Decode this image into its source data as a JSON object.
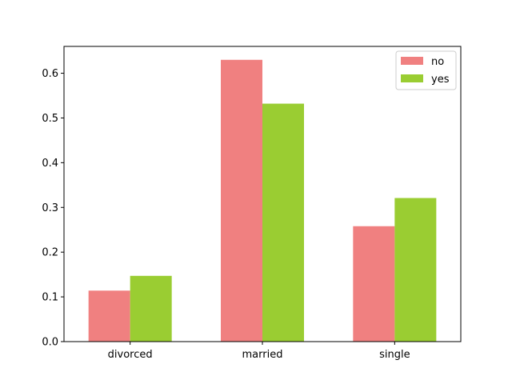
{
  "chart_data": {
    "type": "bar",
    "categories": [
      "divorced",
      "married",
      "single"
    ],
    "series": [
      {
        "name": "no",
        "values": [
          0.114,
          0.63,
          0.258
        ],
        "color": "#f08080"
      },
      {
        "name": "yes",
        "values": [
          0.147,
          0.532,
          0.321
        ],
        "color": "#9acd32"
      }
    ],
    "title": "",
    "xlabel": "",
    "ylabel": "",
    "ylim": [
      0,
      0.66
    ],
    "yticks": [
      0.0,
      0.1,
      0.2,
      0.3,
      0.4,
      0.5,
      0.6
    ],
    "ytick_labels": [
      "0.0",
      "0.1",
      "0.2",
      "0.3",
      "0.4",
      "0.5",
      "0.6"
    ],
    "grid": false,
    "legend": {
      "placement": "top-right"
    }
  }
}
